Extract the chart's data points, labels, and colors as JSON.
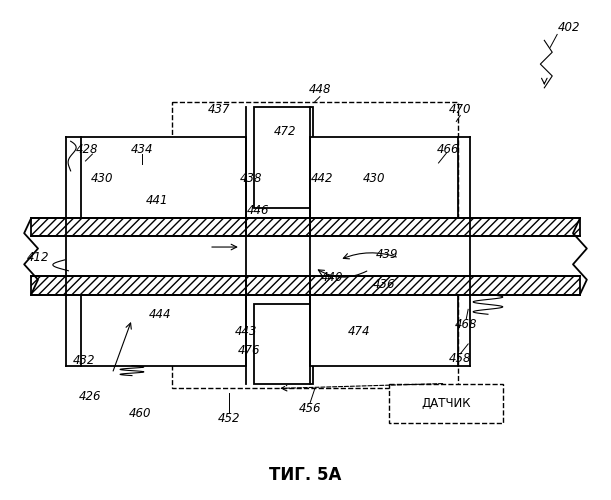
{
  "title": "ΤИГ. 5А",
  "bg_color": "#ffffff",
  "lw_main": 1.3,
  "lw_thin": 0.8,
  "label_fontsize": 8.5,
  "title_fontsize": 12
}
